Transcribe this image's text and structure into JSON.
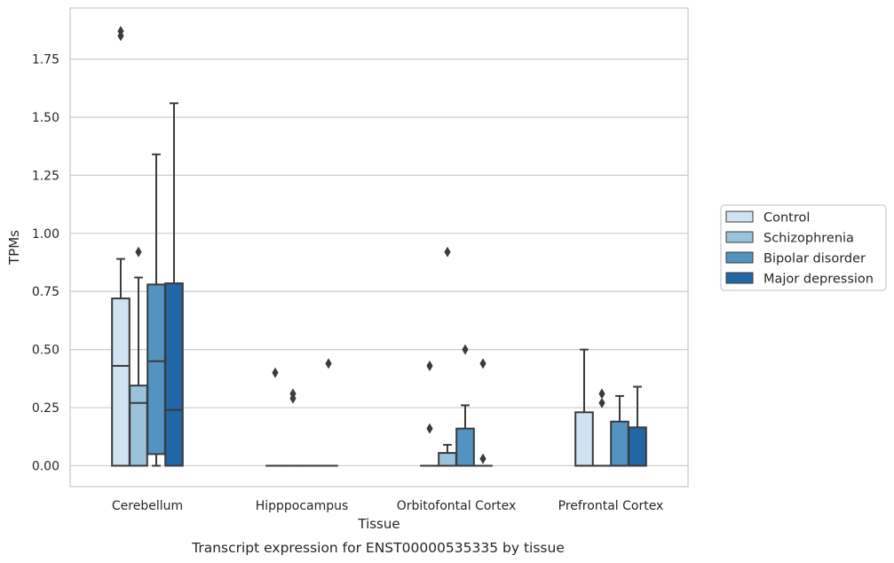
{
  "chart_data": {
    "type": "box",
    "xlabel": "Tissue",
    "ylabel": "TPMs",
    "caption": "Transcript expression for ENST00000535335 by tissue",
    "ylim": [
      -0.09,
      1.97
    ],
    "yticks": [
      "0.00",
      "0.25",
      "0.50",
      "0.75",
      "1.00",
      "1.25",
      "1.50",
      "1.75"
    ],
    "yticks_values": [
      0,
      0.25,
      0.5,
      0.75,
      1.0,
      1.25,
      1.5,
      1.75
    ],
    "grid": "horizontal",
    "legend_position": "right",
    "categories": [
      "Cerebellum",
      "Hipppocampus",
      "Orbitofontal Cortex",
      "Prefrontal Cortex"
    ],
    "series": [
      {
        "name": "Control",
        "color": "#d1e2f2",
        "boxes": [
          {
            "min": 0,
            "q1": 0,
            "median": 0.43,
            "q3": 0.72,
            "max": 0.89,
            "outliers": [
              1.85,
              1.87
            ]
          },
          {
            "min": 0,
            "q1": 0,
            "median": 0,
            "q3": 0,
            "max": 0,
            "outliers": [
              0.4
            ]
          },
          {
            "min": 0,
            "q1": 0,
            "median": 0,
            "q3": 0,
            "max": 0,
            "outliers": [
              0.16,
              0.43
            ]
          },
          {
            "min": 0,
            "q1": 0,
            "median": 0,
            "q3": 0.23,
            "max": 0.5,
            "outliers": []
          }
        ]
      },
      {
        "name": "Schizophrenia",
        "color": "#9ac2db",
        "boxes": [
          {
            "min": 0,
            "q1": 0,
            "median": 0.27,
            "q3": 0.345,
            "max": 0.81,
            "outliers": [
              0.92
            ]
          },
          {
            "min": 0,
            "q1": 0,
            "median": 0,
            "q3": 0,
            "max": 0,
            "outliers": [
              0.29,
              0.31
            ]
          },
          {
            "min": 0,
            "q1": 0,
            "median": 0,
            "q3": 0.055,
            "max": 0.09,
            "outliers": [
              0.92
            ]
          },
          {
            "min": 0,
            "q1": 0,
            "median": 0,
            "q3": 0,
            "max": 0,
            "outliers": [
              0.27,
              0.31
            ]
          }
        ]
      },
      {
        "name": "Bipolar disorder",
        "color": "#5293c2",
        "boxes": [
          {
            "min": 0,
            "q1": 0.05,
            "median": 0.45,
            "q3": 0.78,
            "max": 1.34,
            "outliers": []
          },
          {
            "min": 0,
            "q1": 0,
            "median": 0,
            "q3": 0,
            "max": 0,
            "outliers": []
          },
          {
            "min": 0,
            "q1": 0,
            "median": 0,
            "q3": 0.16,
            "max": 0.26,
            "outliers": [
              0.5
            ]
          },
          {
            "min": 0,
            "q1": 0,
            "median": 0,
            "q3": 0.19,
            "max": 0.3,
            "outliers": []
          }
        ]
      },
      {
        "name": "Major depression",
        "color": "#2166a5",
        "boxes": [
          {
            "min": 0,
            "q1": 0,
            "median": 0.24,
            "q3": 0.785,
            "max": 1.56,
            "outliers": []
          },
          {
            "min": 0,
            "q1": 0,
            "median": 0,
            "q3": 0,
            "max": 0,
            "outliers": [
              0.44
            ]
          },
          {
            "min": 0,
            "q1": 0,
            "median": 0,
            "q3": 0,
            "max": 0,
            "outliers": [
              0.03,
              0.44
            ]
          },
          {
            "min": 0,
            "q1": 0,
            "median": 0,
            "q3": 0.165,
            "max": 0.34,
            "outliers": []
          }
        ]
      }
    ]
  }
}
